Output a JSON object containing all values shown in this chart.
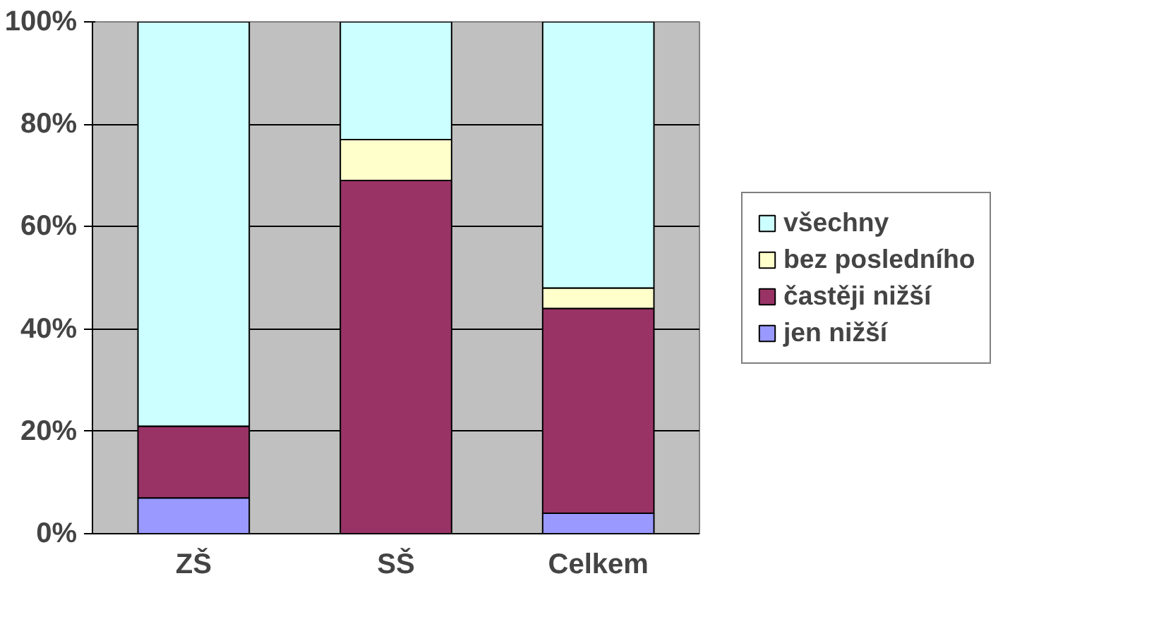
{
  "chart_data": {
    "type": "bar",
    "stacked": true,
    "categories": [
      "ZŠ",
      "SŠ",
      "Celkem"
    ],
    "series": [
      {
        "name": "jen nižší",
        "color": "#9999ff",
        "values": [
          7,
          0,
          4
        ]
      },
      {
        "name": "častěji nižší",
        "color": "#993366",
        "values": [
          14,
          69,
          40
        ]
      },
      {
        "name": "bez posledního",
        "color": "#ffffcc",
        "values": [
          0,
          8,
          4
        ]
      },
      {
        "name": "všechny",
        "color": "#ccffff",
        "values": [
          79,
          23,
          52
        ]
      }
    ],
    "ylim": [
      0,
      100
    ],
    "yticks": [
      {
        "value": 0,
        "label": "0%"
      },
      {
        "value": 20,
        "label": "20%"
      },
      {
        "value": 40,
        "label": "40%"
      },
      {
        "value": 60,
        "label": "60%"
      },
      {
        "value": 80,
        "label": "80%"
      },
      {
        "value": 100,
        "label": "100%"
      }
    ],
    "grid": "y",
    "legend": "right"
  }
}
